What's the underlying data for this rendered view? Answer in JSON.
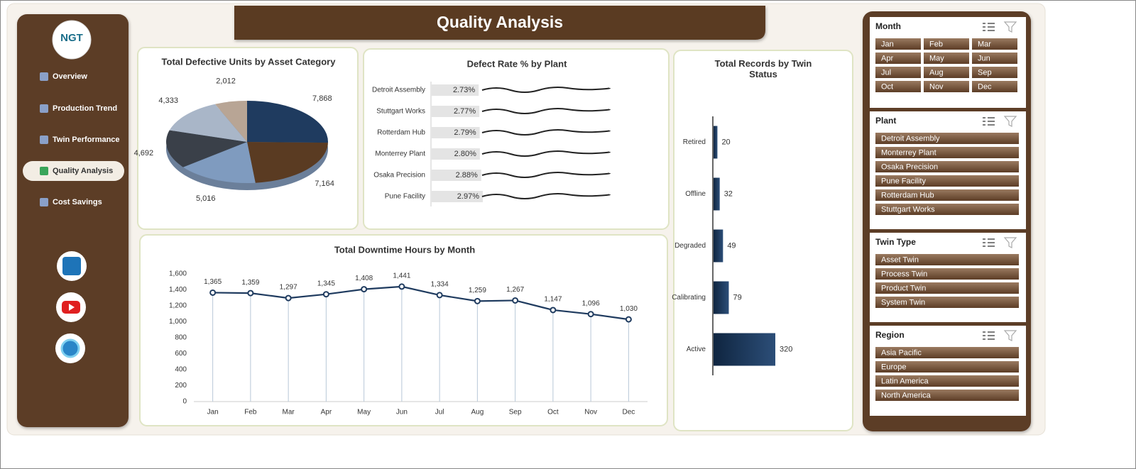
{
  "header": {
    "title": "Quality Analysis"
  },
  "logo": {
    "text": "NGT"
  },
  "nav": {
    "items": [
      "Overview",
      "Production Trend",
      "Twin Performance",
      "Quality Analysis",
      "Cost Savings"
    ],
    "active": 3
  },
  "slicers": [
    {
      "title": "Month",
      "items": [
        "Jan",
        "Feb",
        "Mar",
        "Apr",
        "May",
        "Jun",
        "Jul",
        "Aug",
        "Sep",
        "Oct",
        "Nov",
        "Dec"
      ]
    },
    {
      "title": "Plant",
      "items": [
        "Detroit Assembly",
        "Monterrey Plant",
        "Osaka Precision",
        "Pune Facility",
        "Rotterdam Hub",
        "Stuttgart Works"
      ]
    },
    {
      "title": "Twin Type",
      "items": [
        "Asset Twin",
        "Process Twin",
        "Product Twin",
        "System Twin"
      ]
    },
    {
      "title": "Region",
      "items": [
        "Asia Pacific",
        "Europe",
        "Latin America",
        "North America"
      ]
    }
  ],
  "chart_data": [
    {
      "type": "pie",
      "title": "Total Defective Units by Asset Category",
      "values": [
        7868,
        7164,
        5016,
        4692,
        4333,
        2012
      ],
      "value_labels": [
        "7,868",
        "7,164",
        "5,016",
        "4,692",
        "4,333",
        "2,012"
      ],
      "colors": [
        "#1f3b5f",
        "#5a3b22",
        "#7f9bbf",
        "#3a4049",
        "#a9b6c8",
        "#b8a595"
      ]
    },
    {
      "type": "bar",
      "orientation": "horizontal",
      "title": "Defect Rate % by Plant",
      "categories": [
        "Detroit Assembly",
        "Stuttgart Works",
        "Rotterdam Hub",
        "Monterrey Plant",
        "Osaka Precision",
        "Pune Facility"
      ],
      "values": [
        2.73,
        2.77,
        2.79,
        2.8,
        2.88,
        2.97
      ],
      "value_labels": [
        "2.73%",
        "2.77%",
        "2.79%",
        "2.80%",
        "2.88%",
        "2.97%"
      ],
      "color": "#e4e4e4"
    },
    {
      "type": "line",
      "title": "Total Downtime Hours by Month",
      "categories": [
        "Jan",
        "Feb",
        "Mar",
        "Apr",
        "May",
        "Jun",
        "Jul",
        "Aug",
        "Sep",
        "Oct",
        "Nov",
        "Dec"
      ],
      "values": [
        1365,
        1359,
        1297,
        1345,
        1408,
        1441,
        1334,
        1259,
        1267,
        1147,
        1096,
        1030
      ],
      "value_labels": [
        "1,365",
        "1,359",
        "1,297",
        "1,345",
        "1,408",
        "1,441",
        "1,334",
        "1,259",
        "1,267",
        "1,147",
        "1,096",
        "1,030"
      ],
      "ylim": [
        0,
        1600
      ],
      "yticks": [
        0,
        200,
        400,
        600,
        800,
        {
          "value": 1000,
          "label": "1,000"
        },
        {
          "value": 1200,
          "label": "1,200"
        },
        {
          "value": 1400,
          "label": "1,400"
        },
        {
          "value": 1600,
          "label": "1,600"
        }
      ],
      "color": "#1f3b5f"
    },
    {
      "type": "bar",
      "orientation": "horizontal",
      "title": "Total Records by Twin Status",
      "categories": [
        "Retired",
        "Offline",
        "Degraded",
        "Calibrating",
        "Active"
      ],
      "values": [
        20,
        32,
        49,
        79,
        320
      ],
      "color": "#1f3b5f"
    }
  ]
}
